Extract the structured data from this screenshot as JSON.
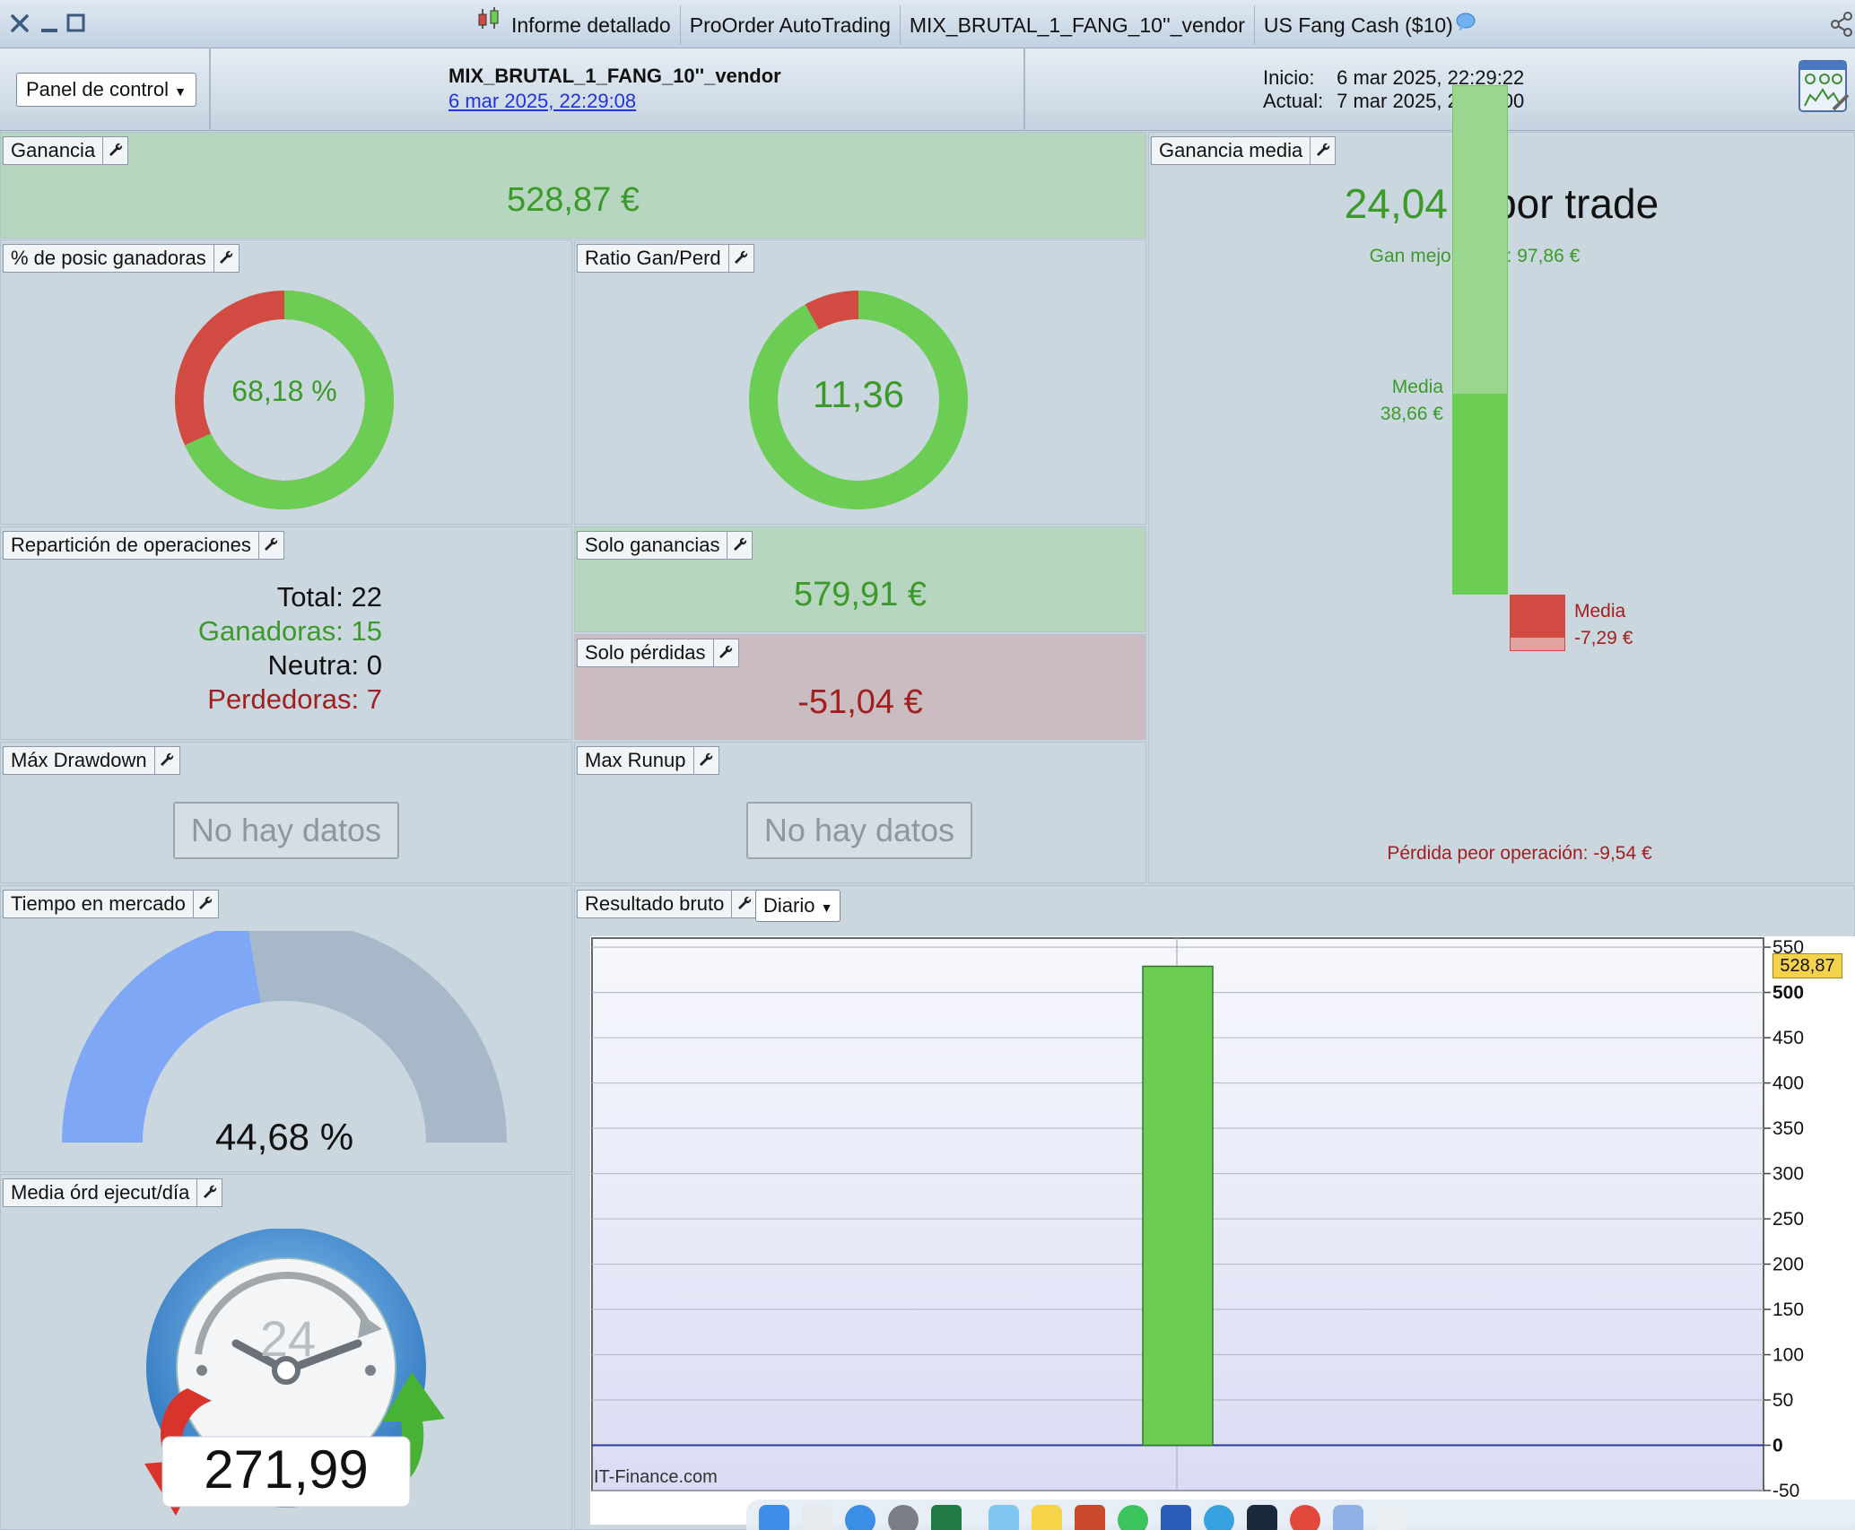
{
  "window": {
    "close_icon": "close-icon",
    "minimize_icon": "minimize-icon",
    "maximize_icon": "maximize-icon",
    "tabs": [
      {
        "label": "Informe detallado",
        "icon": "candlestick-icon"
      },
      {
        "label": "ProOrder AutoTrading"
      },
      {
        "label": "MIX_BRUTAL_1_FANG_10''_vendor"
      },
      {
        "label": "US Fang Cash ($10)",
        "icon": "chat-bubble-icon"
      }
    ]
  },
  "header": {
    "panel_dropdown": "Panel de control",
    "strategy_name": "MIX_BRUTAL_1_FANG_10''_vendor",
    "strategy_date": "6 mar 2025, 22:29:08",
    "inicio_label": "Inicio:",
    "inicio_value": "6 mar 2025, 22:29:22",
    "actual_label": "Actual:",
    "actual_value": "7 mar 2025, 23:00:00"
  },
  "panels": {
    "ganancia": {
      "title": "Ganancia",
      "value": "528,87 €"
    },
    "pct_ganadoras": {
      "title": "% de posic ganadoras",
      "value": "68,18 %",
      "fraction": 0.6818
    },
    "ratio": {
      "title": "Ratio Gan/Perd",
      "value": "11,36",
      "loss_fraction": 0.0809
    },
    "reparticion": {
      "title": "Repartición de operaciones",
      "total": "Total: 22",
      "ganadoras": "Ganadoras: 15",
      "neutra": "Neutra: 0",
      "perdedoras": "Perdedoras: 7"
    },
    "solo_ganancias": {
      "title": "Solo ganancias",
      "value": "579,91 €"
    },
    "solo_perdidas": {
      "title": "Solo pérdidas",
      "value": "-51,04 €"
    },
    "max_drawdown": {
      "title": "Máx Drawdown",
      "value": "No hay datos"
    },
    "max_runup": {
      "title": "Max Runup",
      "value": "No hay datos"
    },
    "tiempo_mercado": {
      "title": "Tiempo en mercado",
      "value": "44,68 %",
      "fraction": 0.4468
    },
    "media_ord": {
      "title": "Media órd ejecut/día",
      "value": "271,99",
      "dial_label": "24"
    },
    "ganancia_media": {
      "title": "Ganancia media",
      "value": "24,04 €",
      "suffix": "por trade",
      "best_label": "Gan mejor posic: 97,86 €",
      "avg_gain_label": "Media",
      "avg_gain_value": "38,66 €",
      "avg_loss_label": "Media",
      "avg_loss_value": "-7,29 €",
      "worst_label": "Pérdida peor operación: -9,54 €",
      "best": 97.86,
      "avg_gain": 38.66,
      "avg_loss": 7.29,
      "worst": 9.54
    },
    "resultado_bruto": {
      "title": "Resultado bruto",
      "period": "Diario"
    }
  },
  "chart_data": {
    "type": "bar",
    "values": [
      528.87
    ],
    "ylim": [
      -50,
      560
    ],
    "yticks": [
      "550",
      "500",
      "450",
      "400",
      "350",
      "300",
      "250",
      "200",
      "150",
      "100",
      "50",
      "0",
      "-50"
    ],
    "last_value_label": "528,87",
    "watermark": "IT-Finance.com"
  },
  "colors": {
    "green": "#6ccd55",
    "red": "#d24b43",
    "blue_gauge": "#7ea7f5",
    "gray_gauge": "#a7b9c8"
  }
}
